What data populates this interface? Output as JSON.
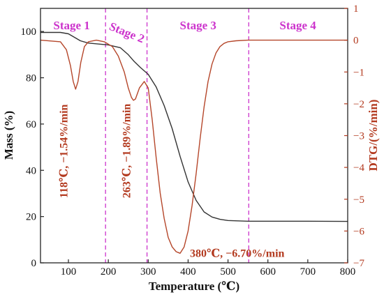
{
  "chart_data": {
    "type": "line",
    "xlabel": "Temperature (℃)",
    "ylabel_left": "Mass (%)",
    "ylabel_right": "DTG/(%/min)",
    "xlim": [
      30,
      800
    ],
    "ylim_left": [
      0,
      110
    ],
    "ylim_right": [
      -7,
      1
    ],
    "x_ticks": [
      "100",
      "200",
      "300",
      "400",
      "500",
      "600",
      "700",
      "800"
    ],
    "y_left_ticks": [
      "0",
      "20",
      "40",
      "60",
      "80",
      "100"
    ],
    "y_right_ticks": [
      "1",
      "0",
      "−1",
      "−2",
      "−3",
      "−4",
      "−5",
      "−6",
      "−7"
    ],
    "grid": false,
    "series": [
      {
        "axis": "left",
        "color": "#333333",
        "x": [
          30,
          80,
          100,
          115,
          130,
          150,
          200,
          230,
          250,
          265,
          280,
          300,
          320,
          340,
          360,
          380,
          400,
          420,
          440,
          460,
          480,
          500,
          550,
          600,
          700,
          800
        ],
        "y": [
          99.6,
          99.6,
          99.0,
          97.5,
          96.0,
          95.0,
          94.2,
          93.0,
          90.0,
          87.0,
          84.5,
          81.5,
          76.0,
          68.0,
          58.0,
          46.0,
          35.0,
          27.0,
          22.0,
          19.8,
          18.8,
          18.3,
          18.0,
          18.0,
          18.0,
          17.9
        ]
      },
      {
        "axis": "right",
        "color": "#b5462a",
        "x": [
          30,
          80,
          95,
          105,
          112,
          118,
          124,
          131,
          140,
          150,
          170,
          190,
          210,
          225,
          240,
          250,
          258,
          263,
          268,
          278,
          290,
          300,
          310,
          320,
          330,
          340,
          350,
          360,
          370,
          380,
          390,
          400,
          410,
          420,
          430,
          440,
          450,
          460,
          470,
          480,
          490,
          500,
          520,
          550,
          600,
          700,
          800
        ],
        "y": [
          0.0,
          -0.05,
          -0.3,
          -0.8,
          -1.3,
          -1.54,
          -1.3,
          -0.7,
          -0.2,
          -0.05,
          0.0,
          -0.05,
          -0.2,
          -0.5,
          -1.0,
          -1.5,
          -1.8,
          -1.89,
          -1.85,
          -1.5,
          -1.3,
          -1.5,
          -2.5,
          -3.7,
          -4.8,
          -5.6,
          -6.2,
          -6.5,
          -6.65,
          -6.7,
          -6.5,
          -6.0,
          -5.2,
          -4.2,
          -3.1,
          -2.1,
          -1.3,
          -0.75,
          -0.4,
          -0.2,
          -0.1,
          -0.05,
          -0.02,
          0.0,
          0.0,
          0.0,
          0.0
        ]
      }
    ],
    "stage_boundaries": [
      193,
      297,
      552
    ],
    "stages": [
      {
        "label": "Stage 1",
        "x": 108,
        "y": 101
      },
      {
        "label": "Stage 2",
        "x": 243,
        "y": 98,
        "rotate": 22
      },
      {
        "label": "Stage 3",
        "x": 425,
        "y": 101
      },
      {
        "label": "Stage 4",
        "x": 675,
        "y": 101
      }
    ],
    "annotations": [
      {
        "text": "118℃, −1.54%/min",
        "x": 97,
        "y": 28,
        "rotate": -90
      },
      {
        "text": "263℃, −1.89%/min",
        "x": 255,
        "y": 28,
        "rotate": -90
      },
      {
        "text": "380℃, −6.70%/min",
        "x": 380,
        "y": 4,
        "rotate": 0
      }
    ]
  }
}
